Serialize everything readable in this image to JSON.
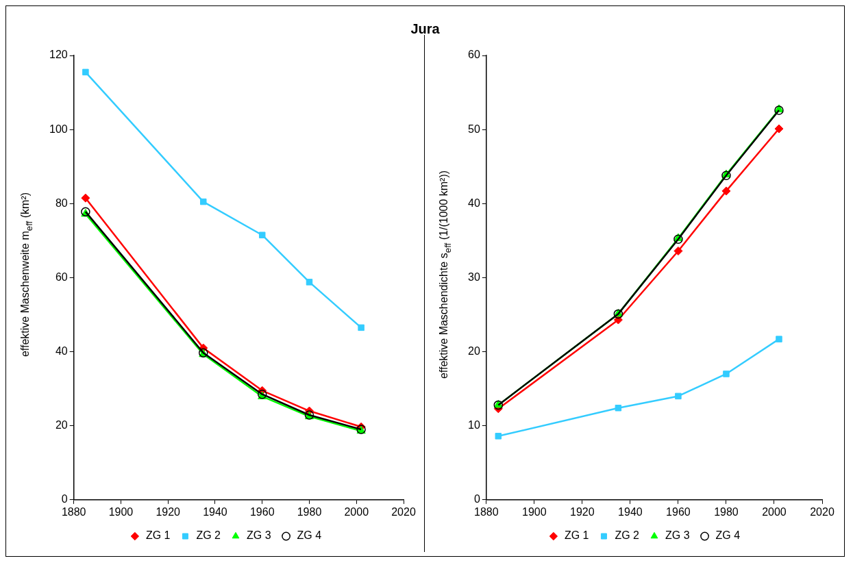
{
  "chart_data": [
    {
      "type": "line",
      "title": "Jura",
      "ylabel": "effektive Maschenweite m$_{eff}$  (km²)",
      "x": [
        1885,
        1935,
        1960,
        1980,
        2002
      ],
      "xlim": [
        1880,
        2020
      ],
      "xticks": [
        1880,
        1900,
        1920,
        1940,
        1960,
        1980,
        2000,
        2020
      ],
      "ylim": [
        0,
        120
      ],
      "yticks": [
        0,
        20,
        40,
        60,
        80,
        100,
        120
      ],
      "grid": false,
      "legend": "bottom",
      "line_style": "solid",
      "series": [
        {
          "name": "ZG 1",
          "color": "#ff0000",
          "marker": "diamond",
          "values": [
            81.5,
            41,
            29.5,
            24,
            19.7
          ]
        },
        {
          "name": "ZG 2",
          "color": "#33ccff",
          "marker": "square",
          "values": [
            115.5,
            80.5,
            71.5,
            58.8,
            46.5
          ]
        },
        {
          "name": "ZG 3",
          "color": "#00ff00",
          "marker": "triangle",
          "values": [
            77.2,
            39.3,
            27.9,
            22.5,
            18.6
          ]
        },
        {
          "name": "ZG 4",
          "color": "#000000",
          "marker": "circle",
          "values": [
            77.8,
            39.7,
            28.5,
            22.9,
            19
          ]
        }
      ]
    },
    {
      "type": "line",
      "ylabel": "effektive Maschendichte s$_{eff}$  (1/(1000 km²))",
      "x": [
        1885,
        1935,
        1960,
        1980,
        2002
      ],
      "xlim": [
        1880,
        2020
      ],
      "xticks": [
        1880,
        1900,
        1920,
        1940,
        1960,
        1980,
        2000,
        2020
      ],
      "ylim": [
        0,
        60
      ],
      "yticks": [
        0,
        10,
        20,
        30,
        40,
        50,
        60
      ],
      "grid": false,
      "legend": "bottom",
      "line_style": "solid",
      "series": [
        {
          "name": "ZG 1",
          "color": "#ff0000",
          "marker": "diamond",
          "values": [
            12.3,
            24.3,
            33.6,
            41.7,
            50.1
          ]
        },
        {
          "name": "ZG 2",
          "color": "#33ccff",
          "marker": "square",
          "values": [
            8.6,
            12.4,
            14,
            17,
            21.7
          ]
        },
        {
          "name": "ZG 3",
          "color": "#00ff00",
          "marker": "triangle",
          "values": [
            12.8,
            25.1,
            35.3,
            43.9,
            52.7
          ]
        },
        {
          "name": "ZG 4",
          "color": "#000000",
          "marker": "circle",
          "values": [
            12.8,
            25.1,
            35.2,
            43.8,
            52.6
          ]
        }
      ]
    }
  ]
}
